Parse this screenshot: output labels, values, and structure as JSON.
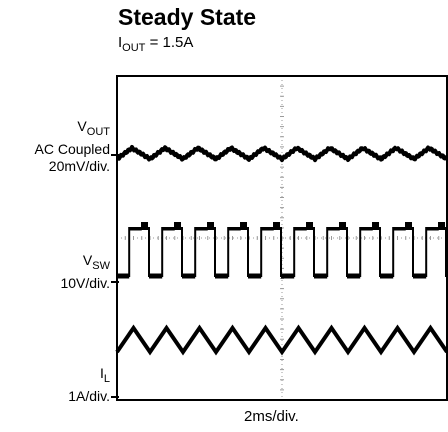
{
  "chart_data": {
    "type": "line",
    "title": "Steady State",
    "subtitle": {
      "main": "I",
      "sub": "OUT",
      "rest": " = 1.5A"
    },
    "xlabel": "2ms/div.",
    "grid": true,
    "grid_divisions": {
      "x": 10,
      "y": 8
    },
    "channels": [
      {
        "label_main": "V",
        "label_sub": "OUT",
        "lines": [
          "AC Coupled",
          "20mV/div."
        ],
        "waveform": "ripple"
      },
      {
        "label_main": "V",
        "label_sub": "SW",
        "lines": [
          "10V/div."
        ],
        "waveform": "square"
      },
      {
        "label_main": "I",
        "label_sub": "L",
        "lines": [
          "1A/div."
        ],
        "waveform": "triangle"
      }
    ],
    "cycles_visible": 10
  },
  "colors": {
    "trace": "#000000",
    "frame": "#000000",
    "grid": "#9a9a9a"
  }
}
